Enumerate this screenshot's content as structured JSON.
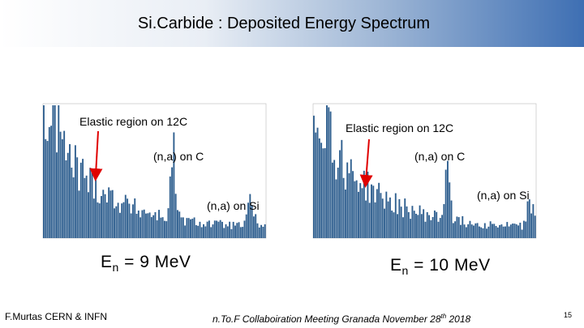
{
  "slide": {
    "title": "Si.Carbide : Deposited Energy Spectrum",
    "footer_left": "F.Murtas CERN & INFN",
    "footer_mid_prefix": "n.To.F Collaboiration Meeting Granada November 28",
    "footer_mid_sup": "th",
    "footer_mid_suffix": " 2018",
    "page_number": "15"
  },
  "left_panel": {
    "label_elastic": "Elastic region on 12C",
    "label_na_c": "(n,a) on C",
    "label_na_si": "(n,a) on Si",
    "energy_prefix": "E",
    "energy_sub": "n",
    "energy_value": " = 9 MeV"
  },
  "right_panel": {
    "label_elastic": "Elastic region on 12C",
    "label_na_c": "(n,a) on C",
    "label_na_si": "(n,a) on Si",
    "energy_prefix": "E",
    "energy_sub": "n",
    "energy_value": " = 10 MeV"
  },
  "colors": {
    "bars": "#2f5f8f",
    "arrow": "#e00000"
  }
}
